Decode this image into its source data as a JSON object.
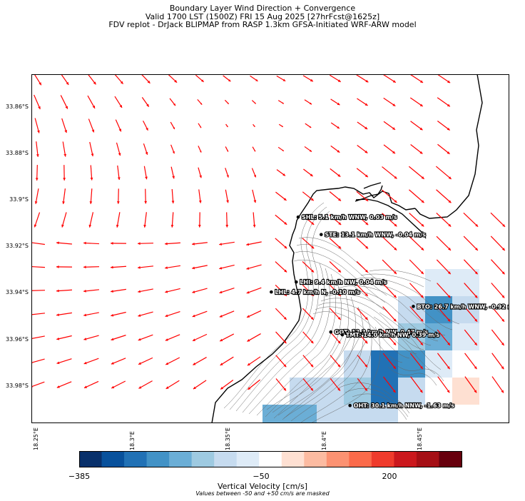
{
  "title": {
    "line1": "Boundary Layer Wind Direction + Convergence",
    "line2": "Valid 1700 LST (1500Z) FRI 15 Aug 2025 [27hrFcst@1625z]",
    "line3": "FDV replot - DrJack BLIPMAP from RASP 1.3km GFSA-Initiated WRF-ARW model"
  },
  "axes": {
    "y_ticks": [
      "33.86°S",
      "33.88°S",
      "33.9°S",
      "33.92°S",
      "33.94°S",
      "33.96°S",
      "33.98°S"
    ],
    "x_ticks": [
      "18.25°E",
      "18.3°E",
      "18.35°E",
      "18.4°E",
      "18.45°E"
    ]
  },
  "map_extent": {
    "lon_min": 18.247,
    "lon_max": 18.496,
    "lat_min": -33.996,
    "lat_max": -33.846
  },
  "stations": [
    {
      "code": "SHL",
      "label": "SHL: 5.1 km/h WNW, 0.03 m/s",
      "lon": 18.386,
      "lat": -33.9074
    },
    {
      "code": "STE",
      "label": "STE: 13.1 km/h WNW, -0.04 m/s",
      "lon": 18.398,
      "lat": -33.9149
    },
    {
      "code": "LHI",
      "label": "LHI: 9.4 km/h NW, 0.04 m/s",
      "lon": 18.385,
      "lat": -33.9353
    },
    {
      "code": "LHL",
      "label": "LHL: 4.7 km/h N, -0.10 m/s",
      "lon": 18.372,
      "lat": -33.9396
    },
    {
      "code": "BTO",
      "label": "BTO: 26.7 km/h WNW, -0.92 m/s",
      "lon": 18.446,
      "lat": -33.9458
    },
    {
      "code": "GOT",
      "label": "GOT: 13.3 km/h NW, 0.47 m/s",
      "lon": 18.403,
      "lat": -33.9568
    },
    {
      "code": "TMT",
      "label": "TMT: 14.0 km/h NW, 0.39 m/s",
      "lon": 18.409,
      "lat": -33.958
    },
    {
      "code": "OHT",
      "label": "OHT: 30.1 km/h NNW, -1.63 m/s",
      "lon": 18.413,
      "lat": -33.9884
    }
  ],
  "colorbar": {
    "ticks": [
      "−385",
      "−50",
      "200"
    ],
    "title": "Vertical Velocity [cm/s]",
    "note": "Values between -50 and +50 cm/s are masked",
    "colors": [
      "#08306b",
      "#08519c",
      "#2171b5",
      "#4292c6",
      "#6baed6",
      "#9ecae1",
      "#c6dbef",
      "#deebf7",
      "#ffffff",
      "#fee0d2",
      "#fcbba1",
      "#fc9272",
      "#fb6a4a",
      "#ef3b2c",
      "#cb181d",
      "#a50f15",
      "#67000d"
    ]
  },
  "styles": {
    "arrow_color": "#ff0000",
    "coast_color": "#000000",
    "contour_color": "#666666"
  }
}
